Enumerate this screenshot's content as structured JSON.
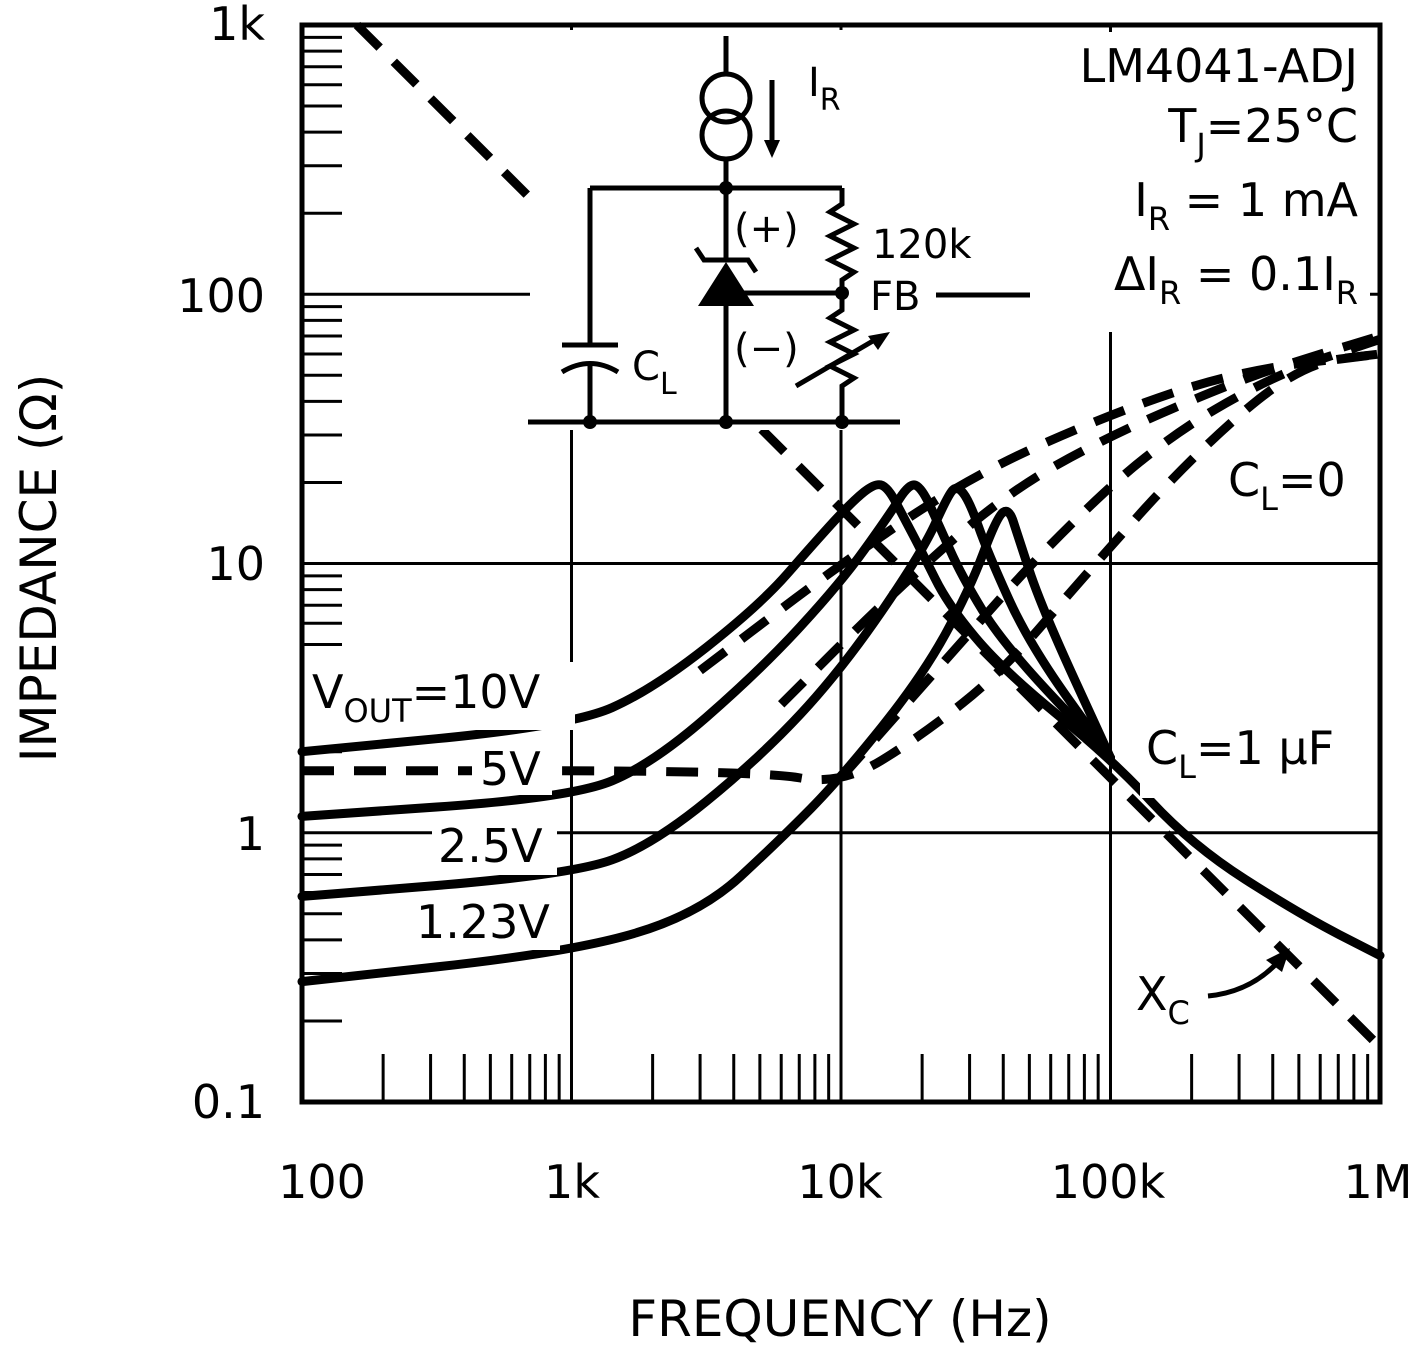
{
  "chart_data": {
    "type": "line",
    "title": "LM4041-ADJ",
    "conditions": [
      "T",
      "J",
      "=25°C",
      "I",
      "R",
      " = 1 mA",
      "ΔI",
      "R",
      " = 0.1I",
      "R"
    ],
    "xlabel": "FREQUENCY (Hz)",
    "ylabel": "IMPEDANCE (Ω)",
    "xscale": "log",
    "yscale": "log",
    "xlim": [
      100,
      1000000
    ],
    "ylim": [
      0.1,
      1000
    ],
    "x_ticks": [
      100,
      1000,
      10000,
      100000,
      1000000
    ],
    "x_tick_labels": [
      "100",
      "1k",
      "10k",
      "100k",
      "1M"
    ],
    "y_ticks": [
      0.1,
      1,
      10,
      100,
      1000
    ],
    "y_tick_labels": [
      "0.1",
      "1",
      "10",
      "100",
      "1k"
    ],
    "series": [
      {
        "name": "VOUT = 10V, CL = 1 µF",
        "style": "solid",
        "x": [
          100,
          1000,
          2000,
          5000,
          8000,
          11000,
          13500,
          15000,
          17000,
          20000,
          25000,
          40000,
          100000,
          200000,
          500000,
          1000000
        ],
        "y": [
          2.0,
          2.5,
          3.4,
          7,
          12,
          17,
          20,
          19,
          15,
          11,
          7,
          4,
          1.9,
          0.9,
          0.5,
          0.35
        ]
      },
      {
        "name": "VOUT = 5V, CL = 1 µF",
        "style": "solid",
        "x": [
          100,
          1000,
          2000,
          5000,
          10000,
          15000,
          18000,
          20000,
          23000,
          28000,
          40000,
          100000
        ],
        "y": [
          1.15,
          1.35,
          1.8,
          4,
          8.5,
          15,
          20,
          19,
          14,
          9,
          5,
          1.9
        ]
      },
      {
        "name": "VOUT = 2.5V, CL = 1 µF",
        "style": "solid",
        "x": [
          100,
          1000,
          2000,
          5000,
          10000,
          20000,
          25000,
          27000,
          30000,
          35000,
          50000,
          100000
        ],
        "y": [
          0.58,
          0.7,
          0.9,
          1.9,
          4,
          11,
          18,
          19.5,
          17,
          11,
          5,
          1.9
        ]
      },
      {
        "name": "VOUT = 1.23V, CL = 1 µF",
        "style": "solid",
        "x": [
          100,
          1000,
          3000,
          6000,
          10000,
          20000,
          30000,
          38000,
          42000,
          45000,
          55000,
          100000
        ],
        "y": [
          0.28,
          0.36,
          0.5,
          0.95,
          1.6,
          3.8,
          8,
          15,
          16,
          13,
          7,
          1.9
        ]
      },
      {
        "name": "XC",
        "style": "dashed",
        "x": [
          160,
          1000000
        ],
        "y": [
          1000,
          0.16
        ]
      },
      {
        "name": "VOUT = 10V, CL = 0",
        "style": "dashed",
        "x": [
          3000,
          10000,
          30000,
          100000,
          300000,
          1000000
        ],
        "y": [
          4,
          10,
          21,
          36,
          52,
          60
        ]
      },
      {
        "name": "VOUT = 5V, CL = 0",
        "style": "dashed",
        "x": [
          6000,
          15000,
          40000,
          100000,
          300000,
          600000,
          1000000
        ],
        "y": [
          3,
          7.5,
          18,
          30,
          48,
          60,
          70
        ]
      },
      {
        "name": "VOUT = 2.5V, CL = 0",
        "style": "dashed",
        "x": [
          10000,
          25000,
          60000,
          150000,
          400000,
          1000000
        ],
        "y": [
          1.6,
          4.5,
          12,
          28,
          50,
          68
        ]
      },
      {
        "name": "VOUT = 1.23V, CL = 0",
        "style": "dashed",
        "x": [
          100,
          5000,
          10000,
          20000,
          40000,
          80000,
          200000,
          500000,
          1000000
        ],
        "y": [
          1.7,
          1.7,
          1.5,
          2.3,
          4,
          9,
          25,
          55,
          60
        ]
      }
    ],
    "annotations": {
      "vout_10": [
        "V",
        "OUT",
        "=10V"
      ],
      "vout_5": "5V",
      "vout_2_5": "2.5V",
      "vout_1_23": "1.23V",
      "cl_zero": [
        "C",
        "L",
        "=0"
      ],
      "cl_1uf": [
        "C",
        "L",
        "=1 µF"
      ],
      "xc": [
        "X",
        "C"
      ]
    },
    "schematic": {
      "current_label": [
        "I",
        "R"
      ],
      "plus": "(+)",
      "minus": "(−)",
      "resistor": "120k",
      "fb": "FB",
      "cap_label": [
        "C",
        "L"
      ]
    }
  }
}
